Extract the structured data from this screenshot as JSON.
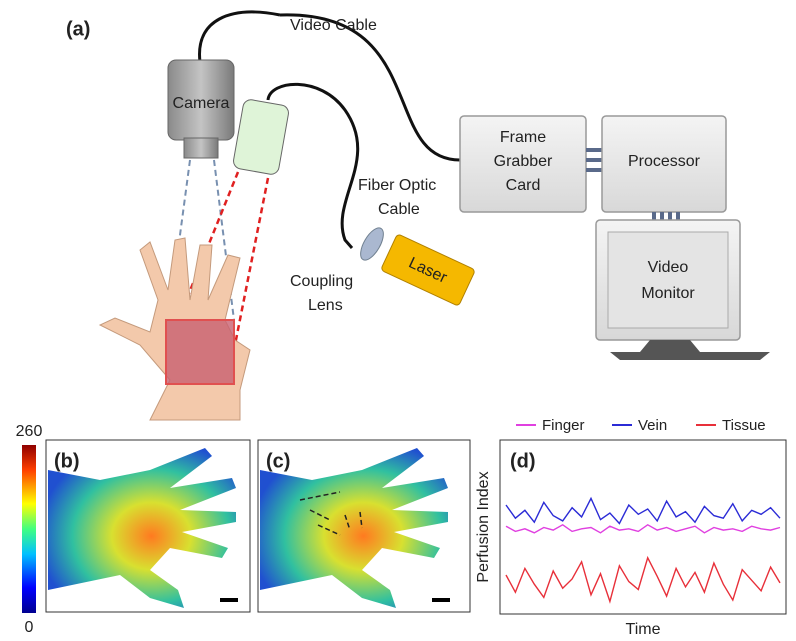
{
  "panel_a": {
    "label": "(a)",
    "video_cable": "Video Cable",
    "camera": "Camera",
    "frame_grabber": [
      "Frame",
      "Grabber",
      "Card"
    ],
    "processor": "Processor",
    "fiber_optic": [
      "Fiber Optic",
      "Cable"
    ],
    "coupling_lens": [
      "Coupling",
      "Lens"
    ],
    "laser": "Laser",
    "video_monitor": [
      "Video",
      "Monitor"
    ]
  },
  "colorbar": {
    "max": 260,
    "min": 0
  },
  "panel_b": {
    "label": "(b)"
  },
  "panel_c": {
    "label": "(c)"
  },
  "chart_data": {
    "type": "line",
    "label": "(d)",
    "y_label": "Perfusion Index",
    "x_label": "Time",
    "x": [
      1,
      2,
      3,
      4,
      5,
      6,
      7,
      8,
      9,
      10,
      11,
      12,
      13,
      14,
      15,
      16,
      17,
      18,
      19,
      20,
      21,
      22,
      23,
      24,
      25,
      26,
      27,
      28,
      29,
      30
    ],
    "xlim": [
      1,
      30
    ],
    "ylim": [
      0,
      100
    ],
    "series": [
      {
        "name": "Finger",
        "color": "#e040e0",
        "values": [
          62,
          58,
          60,
          57,
          61,
          59,
          63,
          58,
          60,
          61,
          57,
          62,
          59,
          60,
          58,
          63,
          59,
          61,
          58,
          60,
          62,
          57,
          61,
          59,
          60,
          58,
          62,
          60,
          59,
          61
        ]
      },
      {
        "name": "Vein",
        "color": "#2b2bd6",
        "values": [
          78,
          68,
          74,
          65,
          80,
          70,
          66,
          76,
          69,
          83,
          67,
          72,
          64,
          78,
          71,
          75,
          66,
          81,
          69,
          73,
          65,
          77,
          70,
          68,
          79,
          66,
          74,
          71,
          76,
          68
        ]
      },
      {
        "name": "Tissue",
        "color": "#e8303a",
        "values": [
          25,
          12,
          30,
          18,
          8,
          28,
          15,
          22,
          35,
          10,
          26,
          5,
          32,
          20,
          14,
          38,
          24,
          9,
          30,
          16,
          27,
          12,
          34,
          18,
          6,
          29,
          21,
          13,
          31,
          19
        ]
      }
    ]
  }
}
